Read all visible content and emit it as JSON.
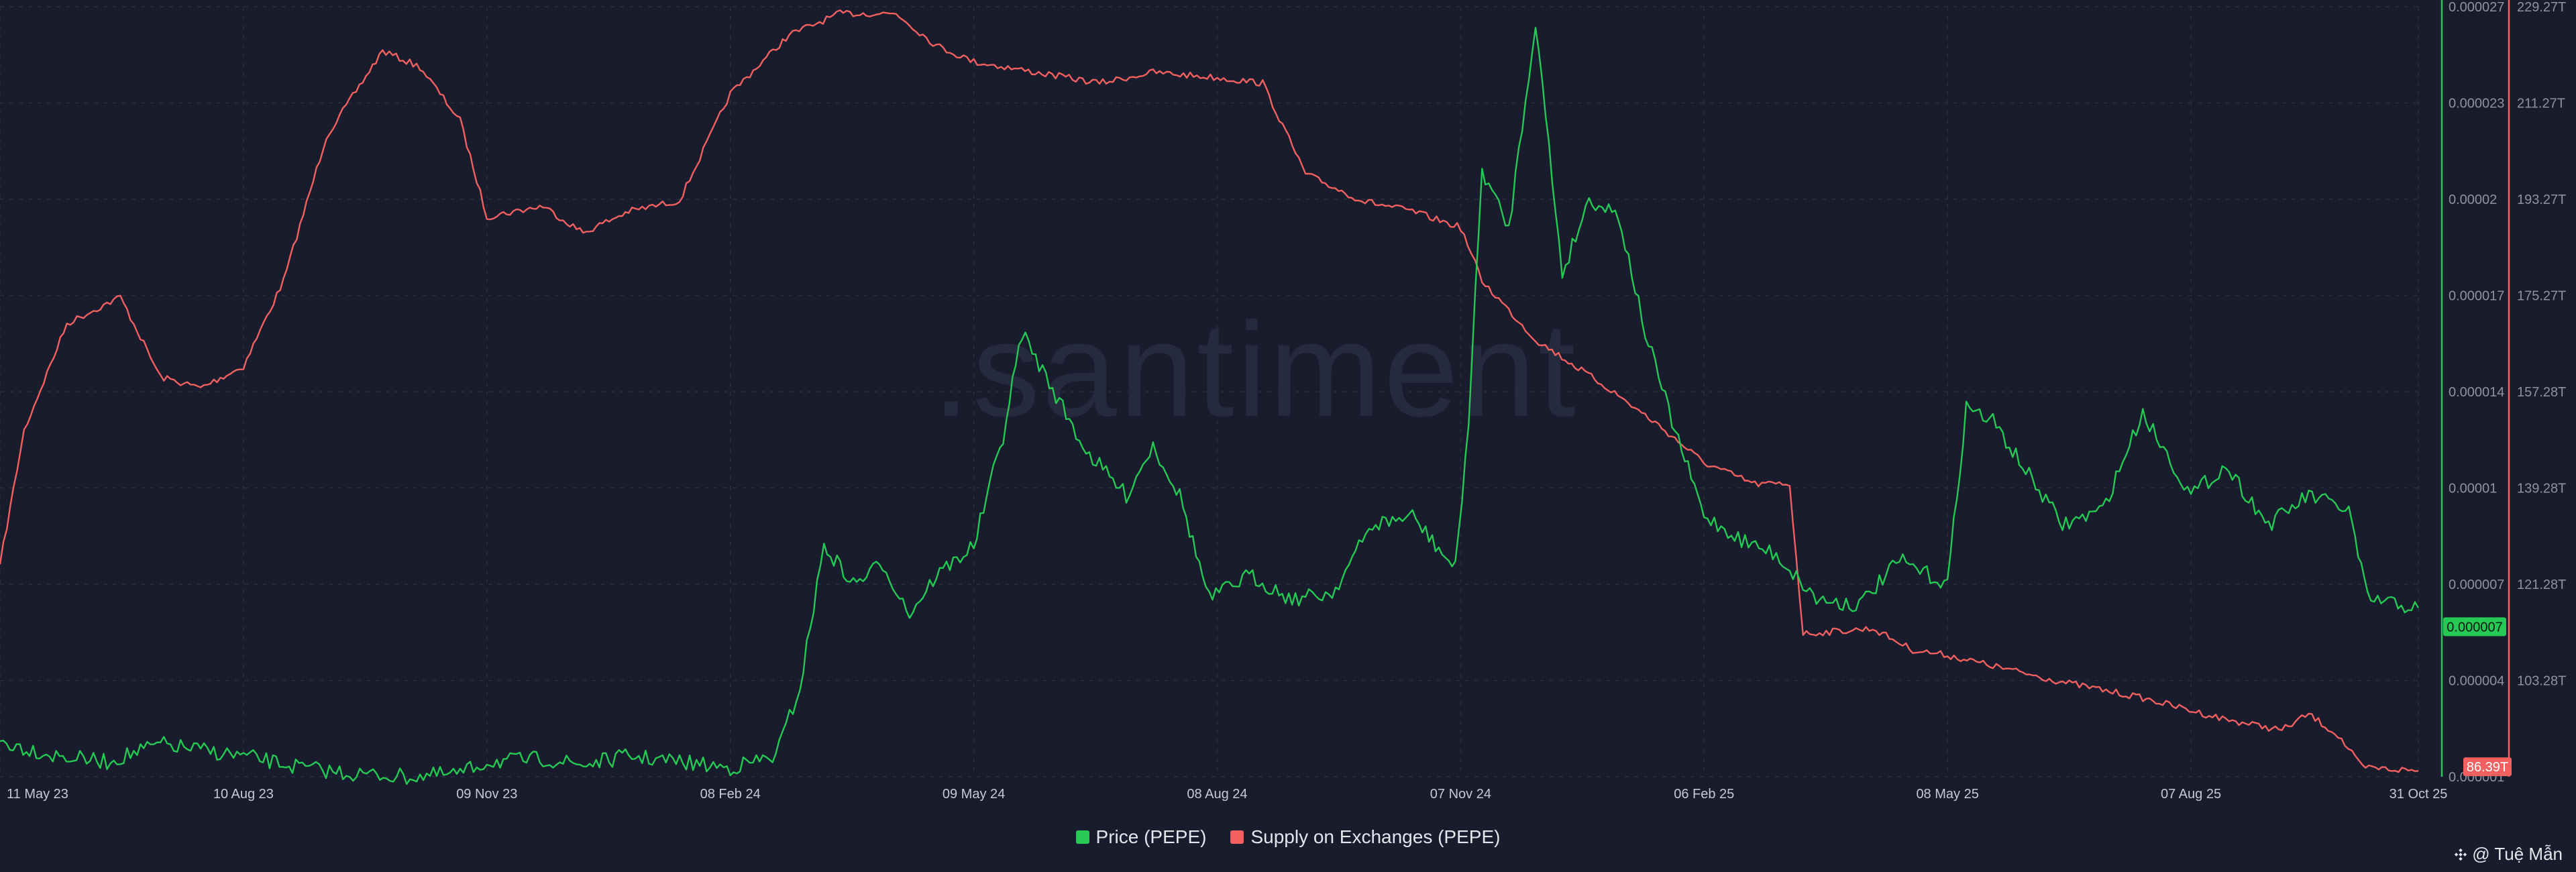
{
  "watermark": ".santiment",
  "colors": {
    "background": "#181c2c",
    "price": "#26c953",
    "supply": "#f26060",
    "grid": "#2a2f40",
    "price_axis_line": "#26c953",
    "supply_axis_line": "#f26060"
  },
  "legend": {
    "price_label": "Price (PEPE)",
    "supply_label": "Supply on Exchanges (PEPE)"
  },
  "credit": {
    "text": "@ Tuệ Mẫn",
    "icon": "binance-diamond-icon"
  },
  "chart_data": {
    "type": "line",
    "x_ticks": [
      "11 May 23",
      "10 Aug 23",
      "09 Nov 23",
      "08 Feb 24",
      "09 May 24",
      "08 Aug 24",
      "07 Nov 24",
      "06 Feb 25",
      "08 May 25",
      "07 Aug 25",
      "31 Oct 25"
    ],
    "x_range": [
      "2023-05-11",
      "2025-10-31"
    ],
    "price_axis": {
      "ticks": [
        "0.000027",
        "0.000023",
        "0.00002",
        "0.000017",
        "0.000014",
        "0.00001",
        "0.000007",
        "0.000004",
        "0.000001"
      ],
      "ylim": [
        1e-06,
        2.7e-05
      ],
      "current_label": "0.000007"
    },
    "supply_axis": {
      "ticks": [
        "229.27T",
        "211.27T",
        "193.27T",
        "175.27T",
        "157.28T",
        "139.28T",
        "121.28T",
        "103.28T"
      ],
      "ylim": [
        85.28,
        229.27
      ],
      "unit": "T",
      "current_label": "86.39T"
    },
    "series": [
      {
        "name": "Price (PEPE)",
        "axis": "left",
        "points": [
          [
            "2023-05-11",
            2.2e-06
          ],
          [
            "2023-06-01",
            1.7e-06
          ],
          [
            "2023-06-20",
            1.5e-06
          ],
          [
            "2023-07-10",
            2.1e-06
          ],
          [
            "2023-07-25",
            1.9e-06
          ],
          [
            "2023-08-10",
            1.7e-06
          ],
          [
            "2023-09-01",
            1.3e-06
          ],
          [
            "2023-09-20",
            1.1e-06
          ],
          [
            "2023-10-10",
            1e-06
          ],
          [
            "2023-10-30",
            1.1e-06
          ],
          [
            "2023-11-09",
            1.5e-06
          ],
          [
            "2023-11-30",
            1.6e-06
          ],
          [
            "2023-12-15",
            1.4e-06
          ],
          [
            "2024-01-01",
            1.7e-06
          ],
          [
            "2024-01-20",
            1.5e-06
          ],
          [
            "2024-02-08",
            1.3e-06
          ],
          [
            "2024-02-25",
            1.7e-06
          ],
          [
            "2024-03-05",
            4e-06
          ],
          [
            "2024-03-14",
            8.8e-06
          ],
          [
            "2024-03-25",
            7.5e-06
          ],
          [
            "2024-04-05",
            8.2e-06
          ],
          [
            "2024-04-15",
            6.5e-06
          ],
          [
            "2024-04-25",
            7.8e-06
          ],
          [
            "2024-05-09",
            8.8e-06
          ],
          [
            "2024-05-20",
            1.25e-05
          ],
          [
            "2024-05-27",
            1.6e-05
          ],
          [
            "2024-06-05",
            1.45e-05
          ],
          [
            "2024-06-20",
            1.2e-05
          ],
          [
            "2024-07-05",
            1.05e-05
          ],
          [
            "2024-07-15",
            1.22e-05
          ],
          [
            "2024-07-25",
            1.05e-05
          ],
          [
            "2024-08-05",
            7e-06
          ],
          [
            "2024-08-20",
            7.8e-06
          ],
          [
            "2024-09-05",
            7e-06
          ],
          [
            "2024-09-20",
            7.2e-06
          ],
          [
            "2024-10-05",
            9.5e-06
          ],
          [
            "2024-10-20",
            9.8e-06
          ],
          [
            "2024-11-05",
            8e-06
          ],
          [
            "2024-11-10",
            1.3e-05
          ],
          [
            "2024-11-15",
            2.15e-05
          ],
          [
            "2024-11-25",
            1.95e-05
          ],
          [
            "2024-12-05",
            2.65e-05
          ],
          [
            "2024-12-15",
            1.8e-05
          ],
          [
            "2024-12-25",
            2.05e-05
          ],
          [
            "2025-01-05",
            2e-05
          ],
          [
            "2025-01-15",
            1.6e-05
          ],
          [
            "2025-01-25",
            1.3e-05
          ],
          [
            "2025-02-06",
            9.8e-06
          ],
          [
            "2025-02-20",
            9e-06
          ],
          [
            "2025-03-05",
            8.5e-06
          ],
          [
            "2025-03-20",
            7e-06
          ],
          [
            "2025-04-05",
            6.8e-06
          ],
          [
            "2025-04-20",
            8.3e-06
          ],
          [
            "2025-05-08",
            7.5e-06
          ],
          [
            "2025-05-15",
            1.35e-05
          ],
          [
            "2025-05-25",
            1.3e-05
          ],
          [
            "2025-06-05",
            1.15e-05
          ],
          [
            "2025-06-20",
            9.5e-06
          ],
          [
            "2025-07-05",
            1e-05
          ],
          [
            "2025-07-20",
            1.33e-05
          ],
          [
            "2025-08-07",
            1.05e-05
          ],
          [
            "2025-08-20",
            1.15e-05
          ],
          [
            "2025-09-05",
            9.5e-06
          ],
          [
            "2025-09-20",
            1.05e-05
          ],
          [
            "2025-10-05",
            1e-05
          ],
          [
            "2025-10-12",
            7e-06
          ],
          [
            "2025-10-31",
            6.7e-06
          ]
        ]
      },
      {
        "name": "Supply on Exchanges (PEPE)",
        "axis": "right",
        "points": [
          [
            "2023-05-11",
            125
          ],
          [
            "2023-05-20",
            150
          ],
          [
            "2023-06-05",
            170
          ],
          [
            "2023-06-25",
            175
          ],
          [
            "2023-07-10",
            160
          ],
          [
            "2023-07-25",
            158
          ],
          [
            "2023-08-10",
            162
          ],
          [
            "2023-08-25",
            178
          ],
          [
            "2023-09-10",
            205
          ],
          [
            "2023-10-01",
            221
          ],
          [
            "2023-10-15",
            218
          ],
          [
            "2023-10-30",
            208
          ],
          [
            "2023-11-09",
            190
          ],
          [
            "2023-11-30",
            192
          ],
          [
            "2023-12-15",
            187
          ],
          [
            "2024-01-01",
            191
          ],
          [
            "2024-01-20",
            193
          ],
          [
            "2024-02-08",
            213
          ],
          [
            "2024-03-01",
            224
          ],
          [
            "2024-03-20",
            228
          ],
          [
            "2024-04-10",
            228
          ],
          [
            "2024-04-25",
            222
          ],
          [
            "2024-05-09",
            219
          ],
          [
            "2024-06-01",
            217
          ],
          [
            "2024-06-25",
            215
          ],
          [
            "2024-07-15",
            217
          ],
          [
            "2024-08-08",
            216
          ],
          [
            "2024-08-25",
            215
          ],
          [
            "2024-09-10",
            198
          ],
          [
            "2024-10-01",
            193
          ],
          [
            "2024-10-20",
            191
          ],
          [
            "2024-11-07",
            188
          ],
          [
            "2024-11-15",
            178
          ],
          [
            "2024-12-05",
            167
          ],
          [
            "2025-01-01",
            158
          ],
          [
            "2025-01-20",
            151
          ],
          [
            "2025-02-06",
            144
          ],
          [
            "2025-02-25",
            140
          ],
          [
            "2025-03-10",
            140
          ],
          [
            "2025-03-15",
            112
          ],
          [
            "2025-04-10",
            113
          ],
          [
            "2025-04-25",
            109
          ],
          [
            "2025-05-08",
            108
          ],
          [
            "2025-05-25",
            106
          ],
          [
            "2025-06-20",
            103
          ],
          [
            "2025-07-20",
            100
          ],
          [
            "2025-08-20",
            96
          ],
          [
            "2025-09-10",
            94
          ],
          [
            "2025-09-20",
            97
          ],
          [
            "2025-10-01",
            93
          ],
          [
            "2025-10-10",
            87
          ],
          [
            "2025-10-31",
            86.39
          ]
        ]
      }
    ]
  }
}
